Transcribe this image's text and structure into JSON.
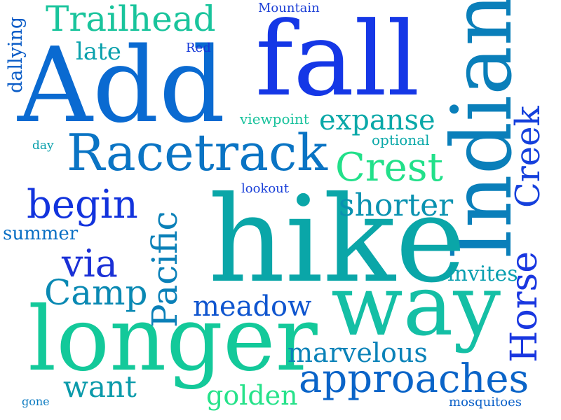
{
  "words": [
    {
      "text": "Add",
      "color": "#0a6ad1"
    },
    {
      "text": "fall",
      "color": "#1537e6"
    },
    {
      "text": "Indian",
      "color": "#0a7fba"
    },
    {
      "text": "hike",
      "color": "#0aa6a8"
    },
    {
      "text": "longer",
      "color": "#13c99a"
    },
    {
      "text": "way",
      "color": "#14bfa5"
    },
    {
      "text": "Racetrack",
      "color": "#0a74c4"
    },
    {
      "text": "Trailhead",
      "color": "#19c49c"
    },
    {
      "text": "Crest",
      "color": "#22e08a"
    },
    {
      "text": "Creek",
      "color": "#1540dc"
    },
    {
      "text": "Pacific",
      "color": "#0a80b8"
    },
    {
      "text": "Horse",
      "color": "#1937e0"
    },
    {
      "text": "approaches",
      "color": "#0a64c8"
    },
    {
      "text": "begin",
      "color": "#1233dd"
    },
    {
      "text": "shorter",
      "color": "#0a92b0"
    },
    {
      "text": "expanse",
      "color": "#0aa8a8"
    },
    {
      "text": "via",
      "color": "#1a30d6"
    },
    {
      "text": "Camp",
      "color": "#0a89b3"
    },
    {
      "text": "meadow",
      "color": "#0f55cf"
    },
    {
      "text": "marvelous",
      "color": "#0a82b8"
    },
    {
      "text": "want",
      "color": "#0a9aaa"
    },
    {
      "text": "golden",
      "color": "#26e28a"
    },
    {
      "text": "late",
      "color": "#0aa1ac"
    },
    {
      "text": "invites",
      "color": "#0a9fb0"
    },
    {
      "text": "dallying",
      "color": "#0a5cc7"
    },
    {
      "text": "summer",
      "color": "#0a6fc4"
    },
    {
      "text": "viewpoint",
      "color": "#18c29c"
    },
    {
      "text": "lookout",
      "color": "#1a40d8"
    },
    {
      "text": "optional",
      "color": "#0aa8a8"
    },
    {
      "text": "Mountain",
      "color": "#1c3fd6"
    },
    {
      "text": "Red",
      "color": "#1437d8"
    },
    {
      "text": "day",
      "color": "#0aa0ac"
    },
    {
      "text": "gone",
      "color": "#0a7ac0"
    },
    {
      "text": "mosquitoes",
      "color": "#0a60c8"
    }
  ]
}
